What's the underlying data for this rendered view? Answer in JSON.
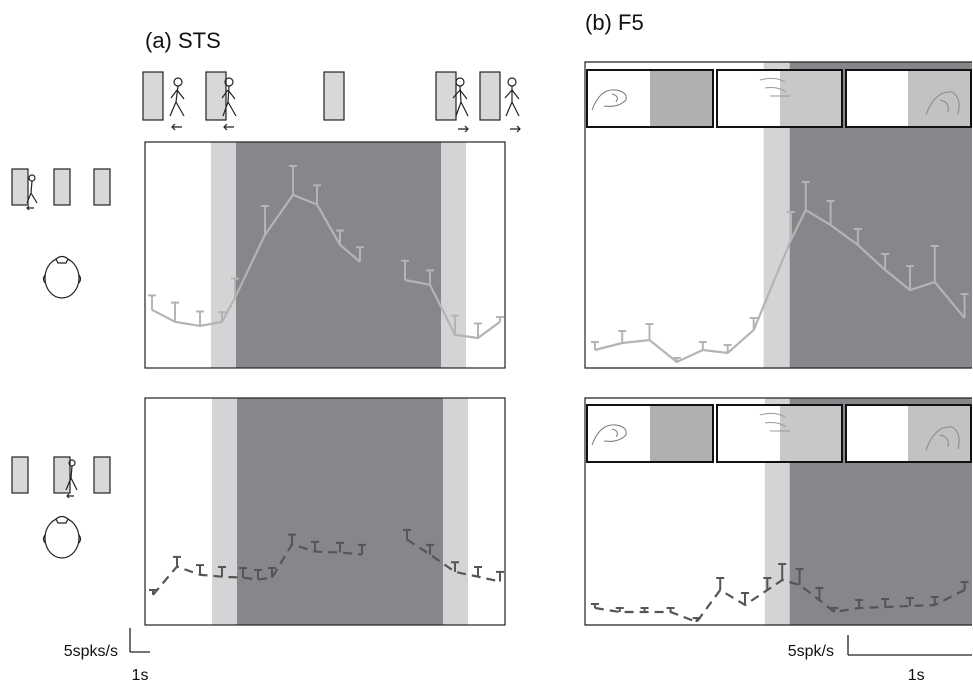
{
  "chart_data": [
    {
      "type": "line",
      "title": "(a) STS",
      "xlim": [
        0,
        18
      ],
      "ylim": [
        0,
        47
      ],
      "shading": [
        {
          "start": 3.3,
          "end": 4.55,
          "color": "#d4d4d6"
        },
        {
          "start": 4.55,
          "end": 14.8,
          "color": "#87878b"
        },
        {
          "start": 14.8,
          "end": 16.05,
          "color": "#d4d4d6"
        }
      ],
      "series": [
        {
          "color": "#b4b4b4",
          "dashed": false,
          "x": [
            0.35,
            1.5,
            2.75,
            3.85,
            4.5,
            6.0,
            7.4,
            8.6,
            9.75,
            10.75,
            12,
            13.0,
            14.25,
            15.5,
            16.65,
            17.75
          ],
          "values": [
            12.1,
            9.6,
            8.75,
            9.6,
            14.6,
            27.7,
            36.0,
            34.0,
            25.6,
            22.1,
            null,
            18.3,
            17.3,
            6.9,
            6.25,
            9.6
          ],
          "errors": [
            3,
            4,
            3,
            2,
            4,
            6,
            6,
            4,
            3,
            3,
            null,
            4,
            3,
            4,
            3,
            1
          ]
        }
      ]
    },
    {
      "type": "line",
      "xlim": [
        0,
        18
      ],
      "ylim": [
        0,
        47
      ],
      "shading": [
        {
          "start": 3.35,
          "end": 4.6,
          "color": "#d4d4d6"
        },
        {
          "start": 4.6,
          "end": 14.9,
          "color": "#87878b"
        },
        {
          "start": 14.9,
          "end": 16.15,
          "color": "#d4d4d6"
        }
      ],
      "series": [
        {
          "color": "#555555",
          "dashed": true,
          "x": [
            0.4,
            1.6,
            2.75,
            3.85,
            4.9,
            5.65,
            6.35,
            7.35,
            8.5,
            9.75,
            10.85,
            12,
            13.1,
            14.25,
            15.5,
            16.65,
            17.75
          ],
          "values": [
            6.25,
            12.1,
            10.4,
            10.0,
            9.8,
            9.4,
            9.8,
            16.7,
            15.2,
            15.0,
            14.6,
            null,
            17.7,
            14.6,
            11.0,
            10.0,
            9.0
          ],
          "errors": [
            1,
            2,
            2,
            2,
            2,
            2,
            2,
            2,
            2,
            2,
            2,
            null,
            2,
            2,
            2,
            2,
            2
          ]
        }
      ],
      "scale_y": 5,
      "scale_y_label": "5spks/s",
      "scale_x": 1,
      "scale_x_label": "1s"
    },
    {
      "type": "line",
      "title": "(b) F5",
      "xlim": [
        0,
        3.12
      ],
      "ylim": [
        0,
        76.5
      ],
      "shading": [
        {
          "start": 1.44,
          "end": 1.65,
          "color": "#d4d4d6"
        },
        {
          "start": 1.65,
          "end": 3.12,
          "color": "#87878b"
        }
      ],
      "series": [
        {
          "color": "#b4b4b4",
          "dashed": false,
          "x": [
            0.08,
            0.3,
            0.52,
            0.74,
            0.95,
            1.15,
            1.36,
            1.66,
            1.78,
            1.98,
            2.2,
            2.42,
            2.62,
            2.82,
            3.06
          ],
          "values": [
            4.5,
            6.25,
            7,
            1.5,
            4.5,
            3.75,
            9.5,
            32,
            39.5,
            35.75,
            30.75,
            24.5,
            19.5,
            21.5,
            12.5
          ],
          "errors": [
            2,
            3,
            4,
            1,
            2,
            2,
            3,
            7,
            7,
            6,
            4,
            4,
            6,
            9,
            6
          ]
        }
      ]
    },
    {
      "type": "line",
      "xlim": [
        0,
        3.12
      ],
      "ylim": [
        0,
        56.75
      ],
      "shading": [
        {
          "start": 1.45,
          "end": 1.65,
          "color": "#d4d4d6"
        },
        {
          "start": 1.65,
          "end": 3.12,
          "color": "#87878b"
        }
      ],
      "series": [
        {
          "color": "#555555",
          "dashed": true,
          "x": [
            0.08,
            0.28,
            0.48,
            0.69,
            0.9,
            1.09,
            1.29,
            1.47,
            1.59,
            1.73,
            1.89,
            2.01,
            2.21,
            2.42,
            2.62,
            2.82,
            3.06
          ],
          "values": [
            4.25,
            3.25,
            3.25,
            3.25,
            0.75,
            8.75,
            5,
            8.75,
            11.25,
            10,
            6.25,
            3.25,
            4.25,
            4.5,
            4.75,
            5,
            8.75
          ],
          "errors": [
            1,
            1,
            1,
            1,
            1,
            3,
            3,
            3,
            4,
            4,
            3,
            1,
            2,
            2,
            2,
            2,
            2
          ]
        }
      ],
      "scale_y": 5,
      "scale_y_label": "5spk/s",
      "scale_x": 1,
      "scale_x_label": "1s"
    }
  ]
}
